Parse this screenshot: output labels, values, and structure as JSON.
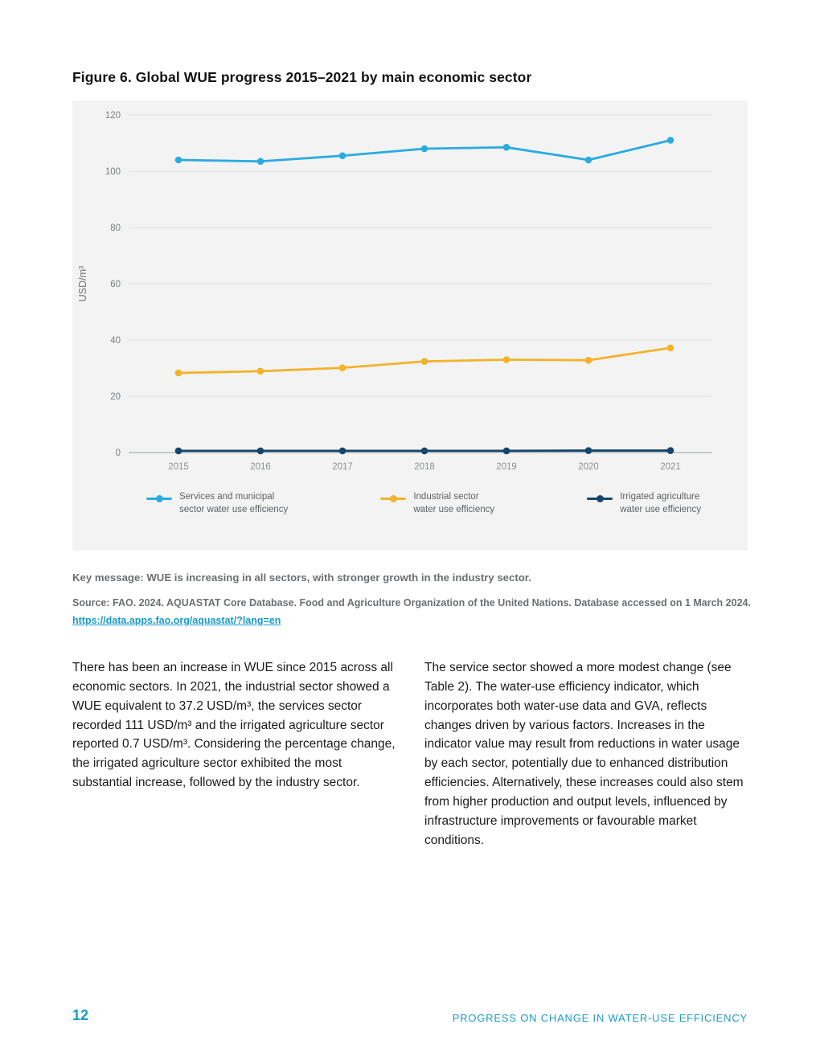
{
  "page": {
    "figure_title": "Figure 6. Global WUE progress 2015–2021 by main economic sector",
    "key_message": "Key message: WUE is increasing in all sectors, with stronger growth in the industry sector.",
    "source_line": "Source: FAO. 2024. AQUASTAT Core Database. Food and Agriculture Organization of the United Nations. Database accessed on 1 March 2024.",
    "source_link": "https://data.apps.fao.org/aquastat/?lang=en",
    "footer_page_number": "12",
    "footer_title": "PROGRESS ON CHANGE IN WATER-USE EFFICIENCY"
  },
  "body": {
    "column1": "There has been an increase in WUE since 2015 across all economic sectors. In 2021, the industrial sector showed a WUE equivalent to 37.2 USD/m³, the services sector recorded 111 USD/m³ and the irrigated agriculture sector reported 0.7 USD/m³. Considering the percentage change, the irrigated agriculture sector exhibited the most substantial increase, followed by the industry sector.",
    "column2": "The service sector showed a more modest change (see Table 2). The water-use efficiency indicator, which incorporates both water-use data and GVA, reflects changes driven by various factors. Increases in the indicator value may result from reductions in water usage by each sector, potentially due to enhanced distribution efficiencies. Alternatively, these increases could also stem from higher production and output levels, influenced by infrastructure improvements or favourable market conditions."
  },
  "legend": {
    "items": [
      {
        "line1": "Services and municipal",
        "line2": "sector water use efficiency"
      },
      {
        "line1": "Industrial sector",
        "line2": "water use efficiency"
      },
      {
        "line1": "Irrigated agriculture",
        "line2": "water use efficiency"
      }
    ]
  },
  "colors": {
    "accent_teal": "#1a9bc9",
    "chart_background": "#f3f3f3",
    "gridline": "#dcdfe1",
    "axis_line": "#b5b9bc"
  },
  "chart_data": {
    "type": "line",
    "title": "Figure 6. Global WUE progress 2015–2021 by main economic sector",
    "x": [
      2015,
      2016,
      2017,
      2018,
      2019,
      2020,
      2021
    ],
    "series": [
      {
        "name": "Services and municipal sector water use efficiency",
        "color": "#29abe2",
        "values": [
          104,
          103.5,
          105.5,
          108,
          108.5,
          104,
          111
        ]
      },
      {
        "name": "Industrial sector water use efficiency",
        "color": "#f3b229",
        "values": [
          28.3,
          28.9,
          30.1,
          32.4,
          33.0,
          32.8,
          37.2
        ]
      },
      {
        "name": "Irrigated agriculture water use efficiency",
        "color": "#15466b",
        "values": [
          0.6,
          0.6,
          0.6,
          0.6,
          0.6,
          0.7,
          0.7
        ]
      }
    ],
    "xlabel": "",
    "ylabel": "USD/m³",
    "ylim": [
      0,
      120
    ],
    "yticks": [
      0,
      20,
      40,
      60,
      80,
      100,
      120
    ],
    "grid": true,
    "legend_position": "bottom"
  }
}
